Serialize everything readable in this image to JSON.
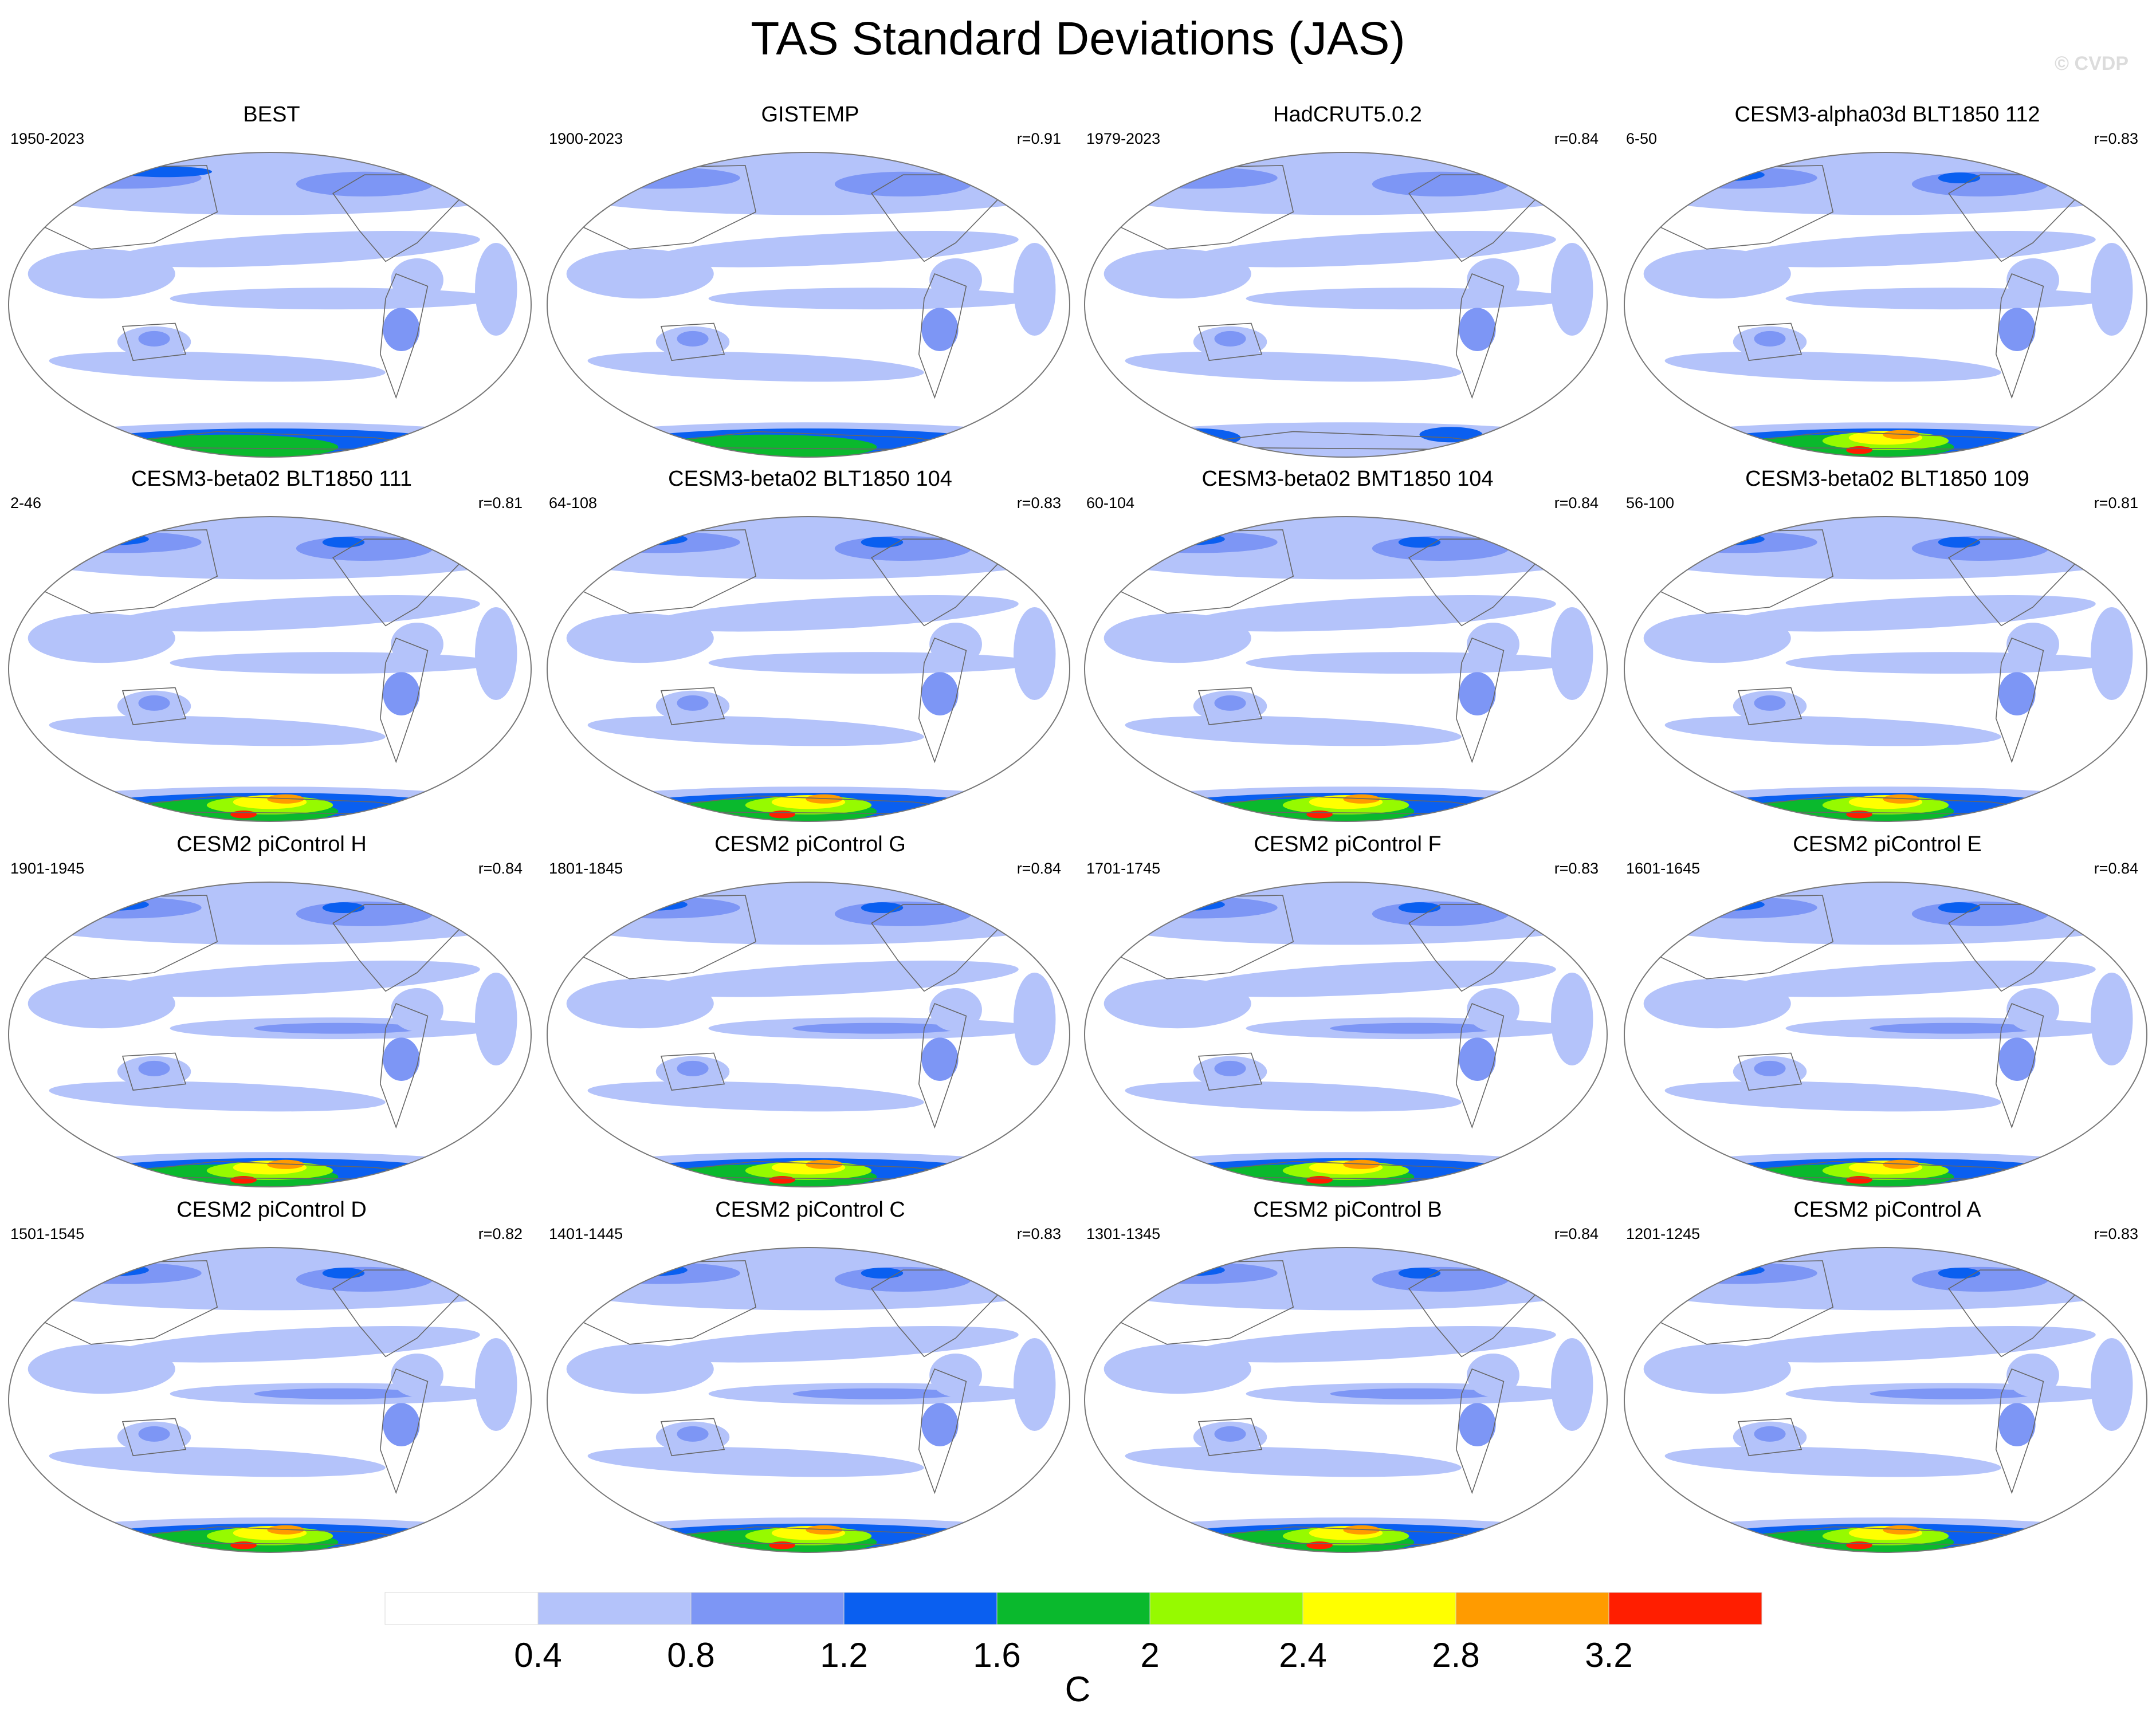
{
  "title": "TAS Standard Deviations (JAS)",
  "watermark": "© CVDP",
  "chart_data": {
    "type": "filled-contour-map-panels",
    "title": "TAS Standard Deviations (JAS)",
    "projection": "Robinson (global)",
    "panels": [
      {
        "name": "BEST",
        "period": "1950-2023",
        "pattern_corr": ""
      },
      {
        "name": "GISTEMP",
        "period": "1900-2023",
        "pattern_corr": "r=0.91"
      },
      {
        "name": "HadCRUT5.0.2",
        "period": "1979-2023",
        "pattern_corr": "r=0.84"
      },
      {
        "name": "CESM3-alpha03d BLT1850 112",
        "period": "6-50",
        "pattern_corr": "r=0.83"
      },
      {
        "name": "CESM3-beta02 BLT1850 111",
        "period": "2-46",
        "pattern_corr": "r=0.81"
      },
      {
        "name": "CESM3-beta02 BLT1850 104",
        "period": "64-108",
        "pattern_corr": "r=0.83"
      },
      {
        "name": "CESM3-beta02 BMT1850 104",
        "period": "60-104",
        "pattern_corr": "r=0.84"
      },
      {
        "name": "CESM3-beta02 BLT1850 109",
        "period": "56-100",
        "pattern_corr": "r=0.81"
      },
      {
        "name": "CESM2 piControl H",
        "period": "1901-1945",
        "pattern_corr": "r=0.84"
      },
      {
        "name": "CESM2 piControl G",
        "period": "1801-1845",
        "pattern_corr": "r=0.84"
      },
      {
        "name": "CESM2 piControl F",
        "period": "1701-1745",
        "pattern_corr": "r=0.83"
      },
      {
        "name": "CESM2 piControl E",
        "period": "1601-1645",
        "pattern_corr": "r=0.84"
      },
      {
        "name": "CESM2 piControl D",
        "period": "1501-1545",
        "pattern_corr": "r=0.82"
      },
      {
        "name": "CESM2 piControl C",
        "period": "1401-1445",
        "pattern_corr": "r=0.83"
      },
      {
        "name": "CESM2 piControl B",
        "period": "1301-1345",
        "pattern_corr": "r=0.84"
      },
      {
        "name": "CESM2 piControl A",
        "period": "1201-1245",
        "pattern_corr": "r=0.83"
      }
    ],
    "colorbar": {
      "label": "C",
      "levels": [
        "0.4",
        "0.8",
        "1.2",
        "1.6",
        "2",
        "2.4",
        "2.8",
        "3.2"
      ],
      "colors": [
        "#ffffff",
        "#b4c3fa",
        "#7d96f5",
        "#0a5ff0",
        "#0ab92d",
        "#96fa00",
        "#ffff00",
        "#ff9b00",
        "#ff1e00"
      ]
    }
  }
}
